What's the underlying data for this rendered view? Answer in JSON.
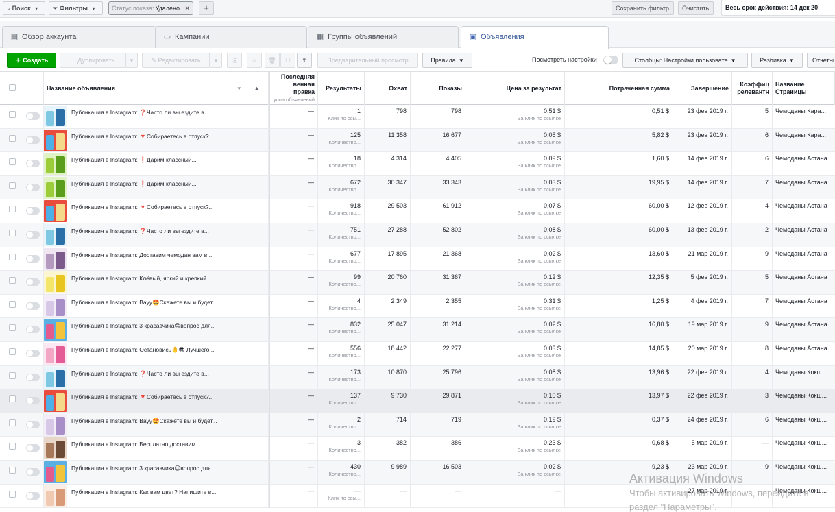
{
  "topbar": {
    "search": "Поиск",
    "filters": "Фильтры",
    "status_label": "Статус показа:",
    "status_value": "Удалено",
    "save_filter": "Сохранить фильтр",
    "clear": "Очистить",
    "date_range": "Весь срок действия: 14 дек 20"
  },
  "tabs": [
    "Обзор аккаунта",
    "Кампании",
    "Группы объявлений",
    "Объявления"
  ],
  "toolbar": {
    "create": "Создать",
    "duplicate": "Дублировать",
    "edit": "Редактировать",
    "preview": "Предварительный просмотр",
    "rules": "Правила",
    "view_settings": "Посмотреть настройки",
    "columns": "Столбцы: Настройки пользовате",
    "breakdown": "Разбивка",
    "reports": "Отчеты"
  },
  "headers": {
    "name": "Название объявления",
    "last_edit_1": "Последняя",
    "last_edit_2": "венная правка",
    "last_edit_3": "уппа объявлений",
    "results": "Результаты",
    "reach": "Охват",
    "impressions": "Показы",
    "cost": "Цена за результат",
    "spent": "Потраченная сумма",
    "end": "Завершение",
    "rel_1": "Коэффиц",
    "rel_2": "релевантн",
    "page_1": "Название",
    "page_2": "Страницы"
  },
  "rows": [
    {
      "name": "Публикация в Instagram: ❓Часто ли вы ездите в...",
      "last": "—",
      "res": "1",
      "res_sub": "Клик по ссы...",
      "reach": "798",
      "imp": "798",
      "cost": "0,51 $",
      "cost_sub": "За клик по ссылке",
      "spent": "0,51 $",
      "end": "23 фев 2019 г.",
      "rel": "5",
      "page": "Чемоданы Кара...",
      "thumb": "blue"
    },
    {
      "name": "Публикация в Instagram: 🔻Собираетесь в отпуск?...",
      "last": "—",
      "res": "125",
      "res_sub": "Количество...",
      "reach": "11 358",
      "imp": "16 677",
      "cost": "0,05 $",
      "cost_sub": "За клик по ссылке",
      "spent": "5,82 $",
      "end": "23 фев 2019 г.",
      "rel": "6",
      "page": "Чемоданы Кара...",
      "thumb": "beach"
    },
    {
      "name": "Публикация в Instagram: ❗Дарим классный...",
      "last": "—",
      "res": "18",
      "res_sub": "Количество...",
      "reach": "4 314",
      "imp": "4 405",
      "cost": "0,09 $",
      "cost_sub": "За клик по ссылке",
      "spent": "1,60 $",
      "end": "14 фев 2019 г.",
      "rel": "6",
      "page": "Чемоданы Астана",
      "thumb": "green"
    },
    {
      "name": "Публикация в Instagram: ❗Дарим классный...",
      "last": "—",
      "res": "672",
      "res_sub": "Количество...",
      "reach": "30 347",
      "imp": "33 343",
      "cost": "0,03 $",
      "cost_sub": "За клик по ссылке",
      "spent": "19,95 $",
      "end": "14 фев 2019 г.",
      "rel": "7",
      "page": "Чемоданы Астана",
      "thumb": "green"
    },
    {
      "name": "Публикация в Instagram: 🔻Собираетесь в отпуск?...",
      "last": "—",
      "res": "918",
      "res_sub": "Количество...",
      "reach": "29 503",
      "imp": "61 912",
      "cost": "0,07 $",
      "cost_sub": "За клик по ссылке",
      "spent": "60,00 $",
      "end": "12 фев 2019 г.",
      "rel": "4",
      "page": "Чемоданы Астана",
      "thumb": "beach"
    },
    {
      "name": "Публикация в Instagram: ❓Часто ли вы ездите в...",
      "last": "—",
      "res": "751",
      "res_sub": "Количество...",
      "reach": "27 288",
      "imp": "52 802",
      "cost": "0,08 $",
      "cost_sub": "За клик по ссылке",
      "spent": "60,00 $",
      "end": "13 фев 2019 г.",
      "rel": "2",
      "page": "Чемоданы Астана",
      "thumb": "blue"
    },
    {
      "name": "Публикация в Instagram: Доставим чемодан вам в...",
      "last": "—",
      "res": "677",
      "res_sub": "Количество...",
      "reach": "17 895",
      "imp": "21 368",
      "cost": "0,02 $",
      "cost_sub": "За клик по ссылке",
      "spent": "13,60 $",
      "end": "21 мар 2019 г.",
      "rel": "9",
      "page": "Чемоданы Астана",
      "thumb": "purple"
    },
    {
      "name": "Публикация в Instagram: Клёвый, яркий и крепкий...",
      "last": "—",
      "res": "99",
      "res_sub": "Количество...",
      "reach": "20 760",
      "imp": "31 367",
      "cost": "0,12 $",
      "cost_sub": "За клик по ссылке",
      "spent": "12,35 $",
      "end": "5 фев 2019 г.",
      "rel": "5",
      "page": "Чемоданы Астана",
      "thumb": "yellow"
    },
    {
      "name": "Публикация в Instagram: Вауу🤩Скажете вы и будет...",
      "last": "—",
      "res": "4",
      "res_sub": "Количество...",
      "reach": "2 349",
      "imp": "2 355",
      "cost": "0,31 $",
      "cost_sub": "За клик по ссылке",
      "spent": "1,25 $",
      "end": "4 фев 2019 г.",
      "rel": "7",
      "page": "Чемоданы Астана",
      "thumb": "lilac"
    },
    {
      "name": "Публикация в Instagram: 3 красавчика😊вопрос для...",
      "last": "—",
      "res": "832",
      "res_sub": "Количество...",
      "reach": "25 047",
      "imp": "31 214",
      "cost": "0,02 $",
      "cost_sub": "За клик по ссылке",
      "spent": "16,80 $",
      "end": "19 мар 2019 г.",
      "rel": "9",
      "page": "Чемоданы Астана",
      "thumb": "multi"
    },
    {
      "name": "Публикация в Instagram: Остановись🤚😎 Лучшего...",
      "last": "—",
      "res": "556",
      "res_sub": "Количество...",
      "reach": "18 442",
      "imp": "22 277",
      "cost": "0,03 $",
      "cost_sub": "За клик по ссылке",
      "spent": "14,85 $",
      "end": "20 мар 2019 г.",
      "rel": "8",
      "page": "Чемоданы Астана",
      "thumb": "pink"
    },
    {
      "name": "Публикация в Instagram: ❓Часто ли вы ездите в...",
      "last": "—",
      "res": "173",
      "res_sub": "Количество...",
      "reach": "10 870",
      "imp": "25 796",
      "cost": "0,08 $",
      "cost_sub": "За клик по ссылке",
      "spent": "13,96 $",
      "end": "22 фев 2019 г.",
      "rel": "4",
      "page": "Чемоданы Кокш...",
      "thumb": "blue"
    },
    {
      "name": "Публикация в Instagram: 🔻Собираетесь в отпуск?...",
      "last": "—",
      "res": "137",
      "res_sub": "Количество...",
      "reach": "9 730",
      "imp": "29 871",
      "cost": "0,10 $",
      "cost_sub": "За клик по ссылке",
      "spent": "13,97 $",
      "end": "22 фев 2019 г.",
      "rel": "3",
      "page": "Чемоданы Кокш...",
      "thumb": "beach"
    },
    {
      "name": "Публикация в Instagram: Вауу🤩Скажете вы и будет...",
      "last": "—",
      "res": "2",
      "res_sub": "Количество...",
      "reach": "714",
      "imp": "719",
      "cost": "0,19 $",
      "cost_sub": "За клик по ссылке",
      "spent": "0,37 $",
      "end": "24 фев 2019 г.",
      "rel": "6",
      "page": "Чемоданы Кокш...",
      "thumb": "lilac"
    },
    {
      "name": "Публикация в Instagram: Бесплатно доставим...",
      "last": "—",
      "res": "3",
      "res_sub": "Количество...",
      "reach": "382",
      "imp": "386",
      "cost": "0,23 $",
      "cost_sub": "За клик по ссылке",
      "spent": "0,68 $",
      "end": "5 мар 2019 г.",
      "rel": "—",
      "page": "Чемоданы Кокш...",
      "thumb": "brown"
    },
    {
      "name": "Публикация в Instagram: 3 красавчика😊вопрос для...",
      "last": "—",
      "res": "430",
      "res_sub": "Количество...",
      "reach": "9 989",
      "imp": "16 503",
      "cost": "0,02 $",
      "cost_sub": "За клик по ссылке",
      "spent": "9,23 $",
      "end": "23 мар 2019 г.",
      "rel": "9",
      "page": "Чемоданы Кокш...",
      "thumb": "multi"
    },
    {
      "name": "Публикация в Instagram: Как вам цвет? Напишите в...",
      "last": "—",
      "res": "—",
      "res_sub": "Клик по ссы...",
      "reach": "—",
      "imp": "—",
      "cost": "—",
      "cost_sub": "",
      "spent": "—",
      "end": "27 мар 2019 г.",
      "rel": "—",
      "page": "Чемоданы Кокш...",
      "thumb": "peach"
    }
  ],
  "watermark": {
    "line1": "Активация Windows",
    "line2": "Чтобы активировать Windows, перейдите в",
    "line3": "раздел \"Параметры\"."
  }
}
